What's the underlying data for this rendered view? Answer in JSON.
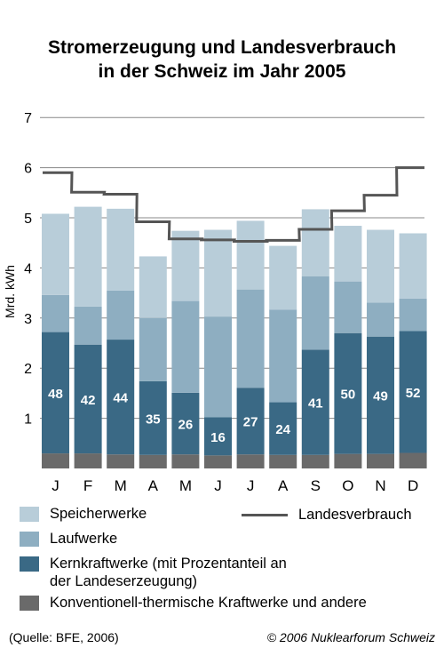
{
  "title_line1": "Stromerzeugung und Landesverbrauch",
  "title_line2": "in der Schweiz im Jahr 2005",
  "colors": {
    "speicherwerke": "#b8cdd9",
    "laufwerke": "#8eaec1",
    "kernkraftwerke": "#3a6985",
    "konventionell": "#6a6a6a",
    "landesverbrauch": "#555555",
    "grid": "#888888"
  },
  "legend": {
    "speicherwerke": "Speicherwerke",
    "laufwerke": "Laufwerke",
    "kernkraftwerke_line1": "Kernkraftwerke (mit Prozentanteil an",
    "kernkraftwerke_line2": "der Landeserzeugung)",
    "konventionell": "Konventionell-thermische Kraftwerke und andere",
    "landesverbrauch": "Landesverbrauch"
  },
  "source": "(Quelle: BFE, 2006)",
  "copyright": "© 2006 Nuklearforum Schweiz",
  "chart_data": {
    "type": "bar",
    "stacked": true,
    "ylabel": "Mrd. kWh",
    "ylim": [
      0,
      7
    ],
    "yticks": [
      1,
      2,
      3,
      4,
      5,
      6,
      7
    ],
    "grid": true,
    "categories": [
      "J",
      "F",
      "M",
      "A",
      "M",
      "J",
      "J",
      "A",
      "S",
      "O",
      "N",
      "D"
    ],
    "series": [
      {
        "name": "Konventionell-thermische Kraftwerke und andere",
        "key": "konventionell",
        "values": [
          0.3,
          0.3,
          0.28,
          0.27,
          0.28,
          0.26,
          0.28,
          0.27,
          0.27,
          0.29,
          0.29,
          0.31
        ]
      },
      {
        "name": "Kernkraftwerke",
        "key": "kernkraftwerke",
        "values": [
          2.42,
          2.17,
          2.29,
          1.47,
          1.23,
          0.76,
          1.33,
          1.05,
          2.1,
          2.41,
          2.34,
          2.43
        ]
      },
      {
        "name": "Laufwerke",
        "key": "laufwerke",
        "values": [
          0.74,
          0.76,
          0.98,
          1.26,
          1.83,
          2.01,
          1.96,
          1.85,
          1.46,
          1.03,
          0.68,
          0.65
        ]
      },
      {
        "name": "Speicherwerke",
        "key": "speicherwerke",
        "values": [
          1.62,
          1.99,
          1.63,
          1.23,
          1.4,
          1.73,
          1.37,
          1.27,
          1.34,
          1.11,
          1.45,
          1.3
        ]
      }
    ],
    "percent_labels": [
      "48",
      "42",
      "44",
      "35",
      "26",
      "16",
      "27",
      "24",
      "41",
      "50",
      "49",
      "52"
    ],
    "line": {
      "name": "Landesverbrauch",
      "values": [
        5.9,
        5.51,
        5.47,
        4.92,
        4.58,
        4.56,
        4.53,
        4.55,
        4.77,
        5.14,
        5.45,
        6.0
      ]
    }
  }
}
